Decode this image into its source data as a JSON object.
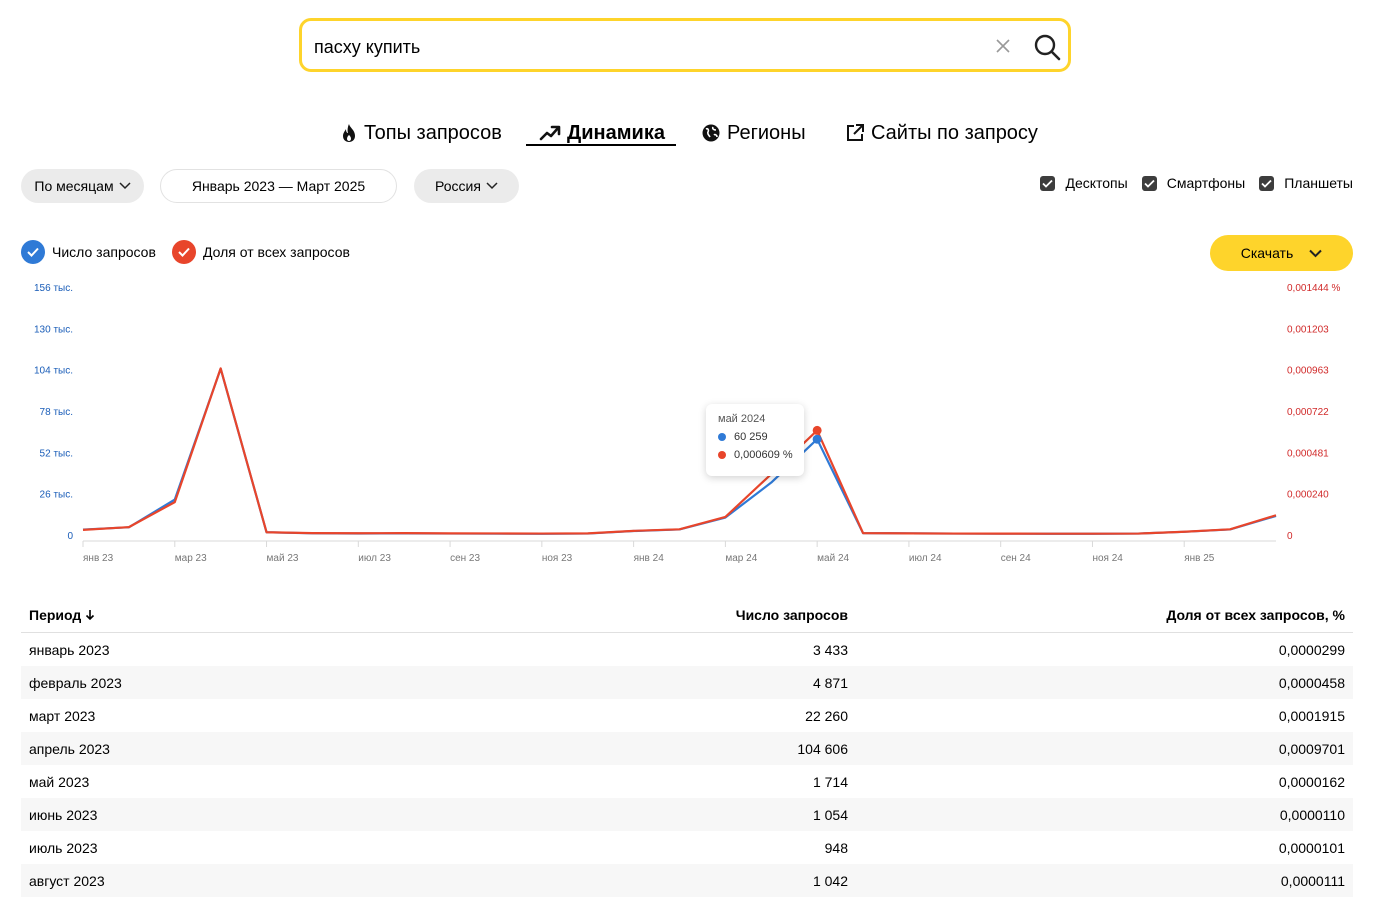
{
  "search": {
    "value": "пасху купить",
    "placeholder": ""
  },
  "tabs": [
    {
      "label": "Топы запросов",
      "icon": "fire-icon"
    },
    {
      "label": "Динамика",
      "icon": "trend-icon",
      "active": true
    },
    {
      "label": "Регионы",
      "icon": "globe-icon"
    },
    {
      "label": "Сайты по запросу",
      "icon": "external-link-icon"
    }
  ],
  "filters": {
    "period_type": "По месяцам",
    "date_range": "Январь 2023 — Март 2025",
    "region": "Россия"
  },
  "devices": [
    {
      "label": "Десктопы",
      "checked": true
    },
    {
      "label": "Смартфоны",
      "checked": true
    },
    {
      "label": "Планшеты",
      "checked": true
    }
  ],
  "legend": {
    "count_label": "Число запросов",
    "share_label": "Доля от всех запросов"
  },
  "download_label": "Скачать",
  "colors": {
    "count": "#2f7ad6",
    "share": "#e8452b",
    "accent": "#fed42b"
  },
  "tooltip": {
    "title": "май 2024",
    "count": "60 259",
    "share": "0,000609 %"
  },
  "chart_data": {
    "type": "line",
    "x": [
      "янв 23",
      "фев 23",
      "мар 23",
      "апр 23",
      "май 23",
      "июн 23",
      "июл 23",
      "авг 23",
      "сен 23",
      "окт 23",
      "ноя 23",
      "дек 23",
      "янв 24",
      "фев 24",
      "мар 24",
      "апр 24",
      "май 24",
      "июн 24",
      "июл 24",
      "авг 24",
      "сен 24",
      "окт 24",
      "ноя 24",
      "дек 24",
      "янв 25",
      "фев 25",
      "мар 25"
    ],
    "x_tick_labels": [
      "янв 23",
      "мар 23",
      "май 23",
      "июл 23",
      "сен 23",
      "ноя 23",
      "янв 24",
      "мар 24",
      "май 24",
      "июл 24",
      "сен 24",
      "ноя 24",
      "янв 25"
    ],
    "left_ticks": [
      "0",
      "26 тыс.",
      "52 тыс.",
      "78 тыс.",
      "104 тыс.",
      "130 тыс.",
      "156 тыс."
    ],
    "right_ticks": [
      "0",
      "0,000240",
      "0,000481",
      "0,000722",
      "0,000963",
      "0,001203",
      "0,001444 %"
    ],
    "ylim_left": [
      0,
      156000
    ],
    "ylim_right": [
      0,
      0.001444
    ],
    "series": [
      {
        "name": "Число запросов",
        "axis": "left",
        "values": [
          3433,
          4871,
          22260,
          104606,
          1714,
          1054,
          948,
          1042,
          900,
          850,
          800,
          900,
          2500,
          3500,
          11000,
          33000,
          60259,
          1200,
          1000,
          900,
          850,
          800,
          800,
          900,
          2000,
          3500,
          12000
        ]
      },
      {
        "name": "Доля от всех запросов",
        "axis": "right",
        "values": [
          2.99e-05,
          4.58e-05,
          0.0001915,
          0.0009701,
          1.62e-05,
          1.1e-05,
          1.01e-05,
          1.11e-05,
          9.5e-06,
          9e-06,
          8.5e-06,
          9.5e-06,
          2.4e-05,
          3.3e-05,
          0.000105,
          0.000355,
          0.000609,
          1.1e-05,
          9.5e-06,
          8.5e-06,
          8e-06,
          7.5e-06,
          7.5e-06,
          8.5e-06,
          1.9e-05,
          3.3e-05,
          0.000115
        ]
      }
    ]
  },
  "table": {
    "headers": {
      "period": "Период",
      "count": "Число запросов",
      "share": "Доля от всех запросов, %"
    },
    "rows": [
      {
        "period": "январь 2023",
        "count": "3 433",
        "share": "0,0000299"
      },
      {
        "period": "февраль 2023",
        "count": "4 871",
        "share": "0,0000458"
      },
      {
        "period": "март 2023",
        "count": "22 260",
        "share": "0,0001915"
      },
      {
        "period": "апрель 2023",
        "count": "104 606",
        "share": "0,0009701"
      },
      {
        "period": "май 2023",
        "count": "1 714",
        "share": "0,0000162"
      },
      {
        "period": "июнь 2023",
        "count": "1 054",
        "share": "0,0000110"
      },
      {
        "period": "июль 2023",
        "count": "948",
        "share": "0,0000101"
      },
      {
        "period": "август 2023",
        "count": "1 042",
        "share": "0,0000111"
      }
    ]
  }
}
